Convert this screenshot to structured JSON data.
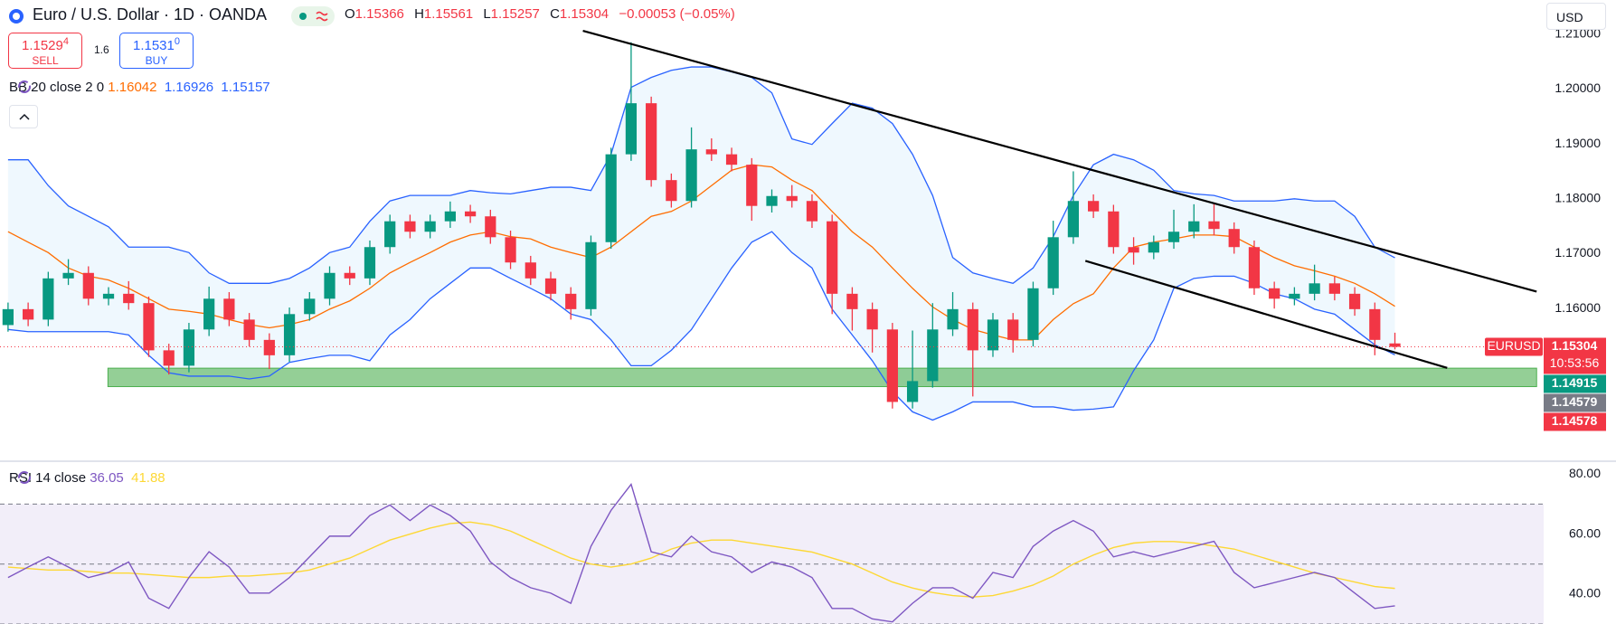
{
  "header": {
    "title": "Euro / U.S. Dollar · 1D · OANDA",
    "ohlc_labels": [
      "O",
      "H",
      "L",
      "C"
    ],
    "change": "−0.00053 (−0.05%)",
    "currency": "USD"
  },
  "trade": {
    "sell": {
      "price": "1.1529",
      "pip": "4",
      "label": "SELL"
    },
    "spread": "1.6",
    "buy": {
      "price": "1.1531",
      "pip": "0",
      "label": "BUY"
    }
  },
  "chart_data": [
    {
      "type": "candlestick",
      "symbol": "EURUSD",
      "countdown": "10:53:56",
      "indicator": "BB 20 close 2 0",
      "up_color": "#089981",
      "down_color": "#f23645",
      "open": [
        1.157,
        1.1599,
        1.158,
        1.1655,
        1.1665,
        1.1618,
        1.1627,
        1.161,
        1.1524,
        1.1496,
        1.1562,
        1.1618,
        1.158,
        1.1543,
        1.1515,
        1.159,
        1.1618,
        1.1665,
        1.1655,
        1.1712,
        1.1759,
        1.174,
        1.1759,
        1.1777,
        1.1768,
        1.173,
        1.1684,
        1.1655,
        1.1627,
        1.1599,
        1.1721,
        1.1881,
        1.1974,
        1.1834,
        1.1796,
        1.189,
        1.1881,
        1.1862,
        1.1787,
        1.1805,
        1.1796,
        1.1759,
        1.1627,
        1.1599,
        1.1562,
        1.143,
        1.1468,
        1.1562,
        1.1599,
        1.1524,
        1.158,
        1.1543,
        1.1637,
        1.173,
        1.1796,
        1.1777,
        1.1712,
        1.1702,
        1.1721,
        1.174,
        1.1759,
        1.1745,
        1.1712,
        1.1637,
        1.1618,
        1.1627,
        1.1646,
        1.1627,
        1.1599,
        1.15366
      ],
      "high": [
        1.1611,
        1.1611,
        1.1667,
        1.169,
        1.1677,
        1.1639,
        1.165,
        1.1622,
        1.1536,
        1.1574,
        1.164,
        1.163,
        1.1592,
        1.1555,
        1.1602,
        1.163,
        1.1677,
        1.1677,
        1.1724,
        1.1771,
        1.1771,
        1.1771,
        1.1795,
        1.1789,
        1.178,
        1.1742,
        1.1696,
        1.1667,
        1.1639,
        1.1733,
        1.1893,
        1.2085,
        1.1986,
        1.1846,
        1.193,
        1.191,
        1.1893,
        1.1874,
        1.1817,
        1.1825,
        1.1808,
        1.1771,
        1.1639,
        1.1611,
        1.1574,
        1.156,
        1.161,
        1.163,
        1.1611,
        1.1592,
        1.1592,
        1.1649,
        1.176,
        1.185,
        1.1808,
        1.1789,
        1.173,
        1.1733,
        1.178,
        1.179,
        1.179,
        1.1757,
        1.1724,
        1.1649,
        1.1639,
        1.168,
        1.1658,
        1.1639,
        1.1611,
        1.15561
      ],
      "low": [
        1.1558,
        1.1568,
        1.1568,
        1.1643,
        1.1606,
        1.1606,
        1.1598,
        1.1512,
        1.148,
        1.1484,
        1.155,
        1.1568,
        1.1531,
        1.149,
        1.1503,
        1.1578,
        1.1606,
        1.1643,
        1.1643,
        1.17,
        1.1728,
        1.1728,
        1.1747,
        1.1756,
        1.1718,
        1.1672,
        1.1643,
        1.1615,
        1.158,
        1.1587,
        1.1709,
        1.1869,
        1.1822,
        1.1784,
        1.1784,
        1.1869,
        1.185,
        1.176,
        1.1775,
        1.1784,
        1.1747,
        1.159,
        1.156,
        1.152,
        1.1418,
        1.1418,
        1.1456,
        1.155,
        1.144,
        1.1512,
        1.152,
        1.1531,
        1.1625,
        1.1718,
        1.1765,
        1.17,
        1.168,
        1.169,
        1.1709,
        1.1728,
        1.1733,
        1.17,
        1.1625,
        1.16,
        1.1606,
        1.1615,
        1.1615,
        1.1587,
        1.1515,
        1.15257
      ],
      "close": [
        1.1599,
        1.158,
        1.1655,
        1.1665,
        1.1618,
        1.1627,
        1.161,
        1.1524,
        1.1496,
        1.1562,
        1.1618,
        1.158,
        1.1543,
        1.1515,
        1.159,
        1.1618,
        1.1665,
        1.1655,
        1.1712,
        1.1759,
        1.174,
        1.1759,
        1.1777,
        1.1768,
        1.173,
        1.1684,
        1.1655,
        1.1627,
        1.1599,
        1.1721,
        1.1881,
        1.1974,
        1.1834,
        1.1796,
        1.189,
        1.1881,
        1.1862,
        1.1787,
        1.1805,
        1.1796,
        1.1759,
        1.1627,
        1.1599,
        1.1562,
        1.143,
        1.1468,
        1.1562,
        1.1599,
        1.1524,
        1.158,
        1.1543,
        1.1637,
        1.173,
        1.1796,
        1.1777,
        1.1712,
        1.1702,
        1.1721,
        1.174,
        1.1759,
        1.1745,
        1.1712,
        1.1637,
        1.1618,
        1.1627,
        1.1646,
        1.1627,
        1.1599,
        1.1543,
        1.15304
      ],
      "series": [
        {
          "color": "#ff6d00",
          "values": [
            1.174,
            1.1721,
            1.1702,
            1.1674,
            1.1659,
            1.1652,
            1.1637,
            1.1618,
            1.1599,
            1.1595,
            1.159,
            1.158,
            1.1571,
            1.1565,
            1.1571,
            1.158,
            1.1599,
            1.1614,
            1.1637,
            1.1665,
            1.1684,
            1.1702,
            1.1721,
            1.1734,
            1.174,
            1.1731,
            1.1727,
            1.1712,
            1.1702,
            1.1693,
            1.1712,
            1.174,
            1.1768,
            1.1777,
            1.1796,
            1.1824,
            1.1852,
            1.1862,
            1.1858,
            1.1834,
            1.1815,
            1.1777,
            1.174,
            1.1712,
            1.1674,
            1.1637,
            1.1603,
            1.158,
            1.1562,
            1.1552,
            1.1543,
            1.1543,
            1.158,
            1.1609,
            1.1627,
            1.1674,
            1.1712,
            1.1721,
            1.1727,
            1.1734,
            1.1734,
            1.1731,
            1.1712,
            1.1693,
            1.1678,
            1.1669,
            1.1659,
            1.1646,
            1.1627,
            1.16042
          ]
        },
        {
          "color": "#2962ff",
          "values": [
            1.1871,
            1.1871,
            1.1824,
            1.1787,
            1.1768,
            1.1749,
            1.1712,
            1.1712,
            1.1712,
            1.1702,
            1.1665,
            1.1646,
            1.1646,
            1.1646,
            1.1655,
            1.1674,
            1.1702,
            1.1712,
            1.1759,
            1.1796,
            1.1806,
            1.1806,
            1.1806,
            1.1815,
            1.1811,
            1.1809,
            1.1815,
            1.1821,
            1.1821,
            1.1815,
            1.1881,
            1.2003,
            1.2021,
            1.2034,
            1.204,
            1.204,
            1.2031,
            1.2021,
            1.1993,
            1.1909,
            1.1899,
            1.1937,
            1.1974,
            1.1965,
            1.1937,
            1.1881,
            1.1806,
            1.1693,
            1.1665,
            1.1655,
            1.1646,
            1.1674,
            1.1731,
            1.1806,
            1.1862,
            1.1881,
            1.1871,
            1.1852,
            1.1815,
            1.1809,
            1.1806,
            1.1796,
            1.1796,
            1.1796,
            1.18,
            1.1796,
            1.1796,
            1.1768,
            1.1712,
            1.16926
          ]
        },
        {
          "color": "#2962ff",
          "values": [
            1.1562,
            1.1558,
            1.1558,
            1.1558,
            1.1558,
            1.1558,
            1.1552,
            1.1515,
            1.1483,
            1.1477,
            1.1477,
            1.1477,
            1.1472,
            1.1477,
            1.1502,
            1.1509,
            1.1515,
            1.1515,
            1.1505,
            1.1552,
            1.158,
            1.1618,
            1.1646,
            1.1674,
            1.1674,
            1.1655,
            1.1637,
            1.1618,
            1.159,
            1.158,
            1.1543,
            1.1496,
            1.1496,
            1.1524,
            1.1562,
            1.1618,
            1.1674,
            1.1721,
            1.174,
            1.1702,
            1.1674,
            1.1599,
            1.1552,
            1.1505,
            1.1449,
            1.1412,
            1.1397,
            1.1412,
            1.143,
            1.143,
            1.143,
            1.1421,
            1.1421,
            1.1415,
            1.1417,
            1.1421,
            1.1487,
            1.1543,
            1.1637,
            1.1655,
            1.1659,
            1.1659,
            1.1646,
            1.1627,
            1.1618,
            1.1599,
            1.159,
            1.1562,
            1.1534,
            1.15157
          ]
        }
      ],
      "band_color": "#2196f3",
      "zone": {
        "top": 1.14915,
        "bottom": 1.14579,
        "start": 4.97,
        "end": 76.05,
        "color": "#4caf50"
      },
      "trendlines": [
        {
          "x": [
            28.6,
            76.05
          ],
          "y": [
            1.2106,
            1.1631
          ],
          "color": "#000000"
        },
        {
          "x": [
            53.6,
            71.6
          ],
          "y": [
            1.1687,
            1.1492
          ],
          "color": "#000000"
        }
      ],
      "alert_price": 1.14578,
      "xlim": [
        -0.4,
        76.4
      ],
      "ylim": [
        1.1327,
        1.2162
      ],
      "yticks": [
        {
          "value": 1.16,
          "label": "1.16000"
        },
        {
          "value": 1.17,
          "label": "1.17000"
        },
        {
          "value": 1.18,
          "label": "1.18000"
        },
        {
          "value": 1.19,
          "label": "1.19000"
        },
        {
          "value": 1.2,
          "label": "1.20000"
        },
        {
          "value": 1.21,
          "label": "1.21000"
        }
      ],
      "grid": false
    },
    {
      "type": "line",
      "indicator": "RSI 14 close",
      "series": [
        {
          "color": "#7e57c2",
          "values": [
            45.5,
            49,
            52.4,
            49,
            45.5,
            47.2,
            50.7,
            38.6,
            35.2,
            45.5,
            54.1,
            49,
            40.3,
            40.3,
            45.5,
            52.4,
            59.3,
            59.3,
            66.2,
            69.7,
            64.5,
            69.7,
            66.2,
            61,
            50.7,
            45.5,
            42.1,
            40.3,
            36.9,
            55.9,
            67.9,
            76.6,
            54.1,
            52.4,
            59.3,
            54.1,
            52.4,
            47.2,
            50.7,
            49,
            45.5,
            35.2,
            35.2,
            31.7,
            30.7,
            36.9,
            42.1,
            42.1,
            38.6,
            47.2,
            45.5,
            55.9,
            61,
            64.5,
            61,
            52.4,
            54.1,
            52.4,
            54.1,
            55.9,
            57.6,
            47.2,
            42.1,
            43.8,
            45.5,
            47.2,
            45.5,
            40.3,
            35.2,
            36.05
          ]
        },
        {
          "color": "#fdd835",
          "values": [
            49,
            48.5,
            48,
            48,
            47.5,
            47,
            47,
            46.5,
            46,
            45.5,
            45.5,
            46,
            46,
            46.5,
            47,
            48,
            50,
            52,
            55,
            58,
            60,
            62,
            63.5,
            64,
            63,
            61,
            58,
            55,
            52,
            50,
            49,
            50,
            52,
            55,
            57,
            58,
            58,
            57,
            56,
            55,
            54,
            52,
            50,
            47,
            44,
            42,
            40.5,
            39.5,
            39,
            39.5,
            41,
            43,
            46,
            50,
            53,
            55.5,
            57,
            57.5,
            57.5,
            57,
            56,
            55,
            53,
            51,
            49,
            47,
            45.5,
            44,
            42.5,
            41.88
          ]
        }
      ],
      "band": [
        30,
        70
      ],
      "levels": [
        70,
        50,
        30
      ],
      "band_color": "#7e57c2",
      "xlim": [
        -0.4,
        76.4
      ],
      "ylim": [
        30,
        83.4
      ],
      "yticks": [
        {
          "value": 40,
          "label": "40.00"
        },
        {
          "value": 60,
          "label": "60.00"
        },
        {
          "value": 80,
          "label": "80.00"
        }
      ],
      "grid": false
    }
  ]
}
